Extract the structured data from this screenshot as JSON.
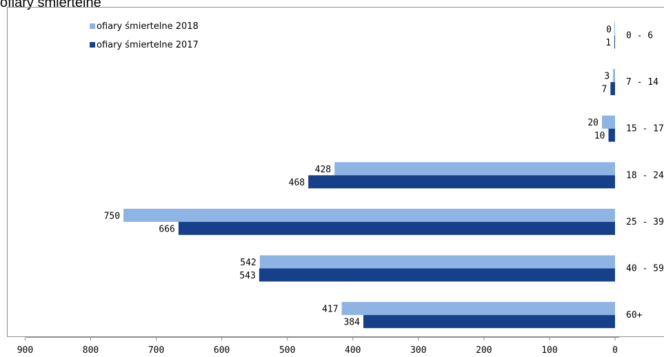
{
  "chart_data": {
    "type": "bar",
    "orientation": "horizontal",
    "title": "ofiary śmiertelne",
    "categories": [
      "0 - 6",
      "7 - 14",
      "15 - 17",
      "18 - 24",
      "25 - 39",
      "40 - 59",
      "60+"
    ],
    "series": [
      {
        "name": "ofiary śmiertelne 2018",
        "values": [
          0,
          3,
          20,
          428,
          750,
          542,
          417
        ],
        "color": "#8EB4E3"
      },
      {
        "name": "ofiary śmiertelne 2017",
        "values": [
          1,
          7,
          10,
          468,
          666,
          543,
          384
        ],
        "color": "#17408B"
      }
    ],
    "xaxis": {
      "reversed": true,
      "range": [
        0,
        900
      ],
      "ticks": [
        900,
        800,
        700,
        600,
        500,
        400,
        300,
        200,
        100,
        0
      ]
    },
    "legend_position": "top-left",
    "grid": false
  }
}
